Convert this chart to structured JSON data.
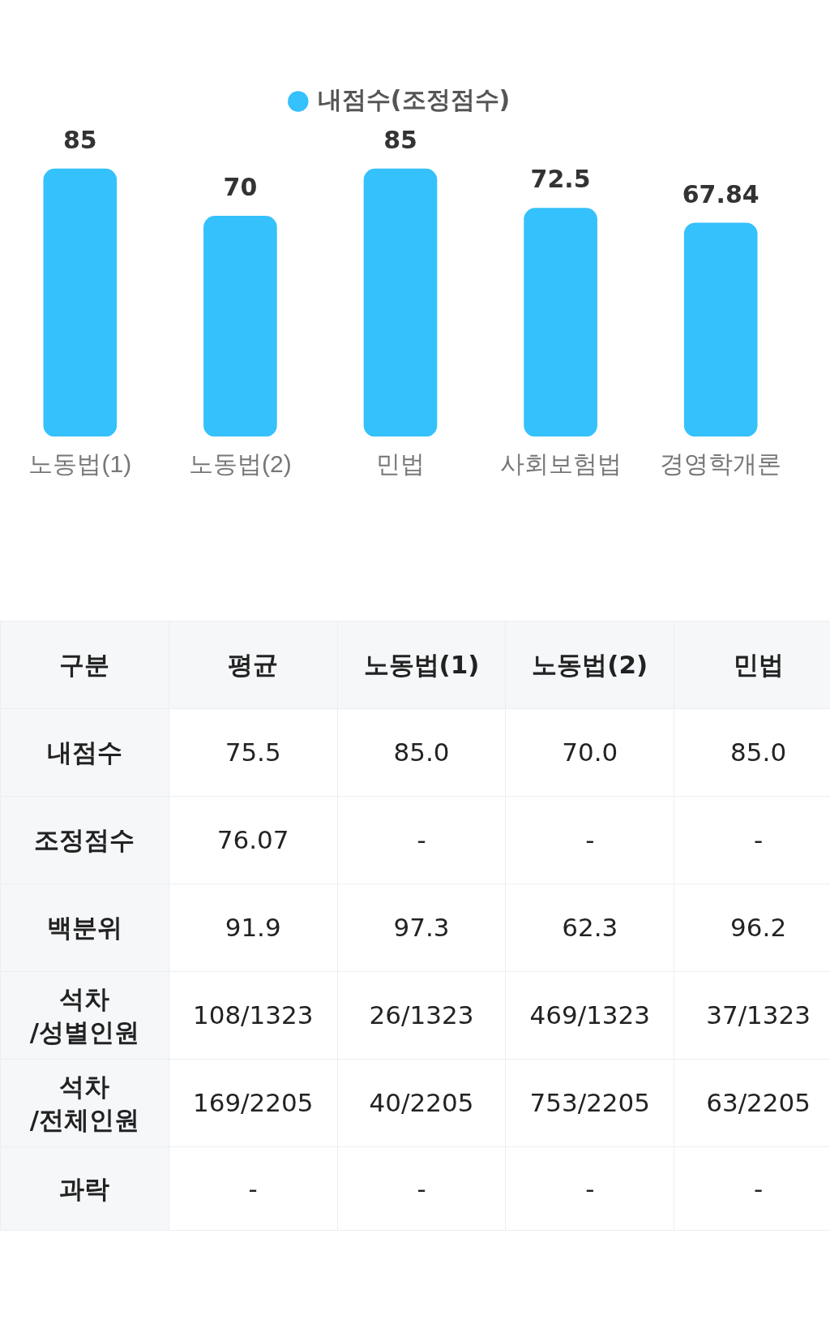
{
  "chart_data": [
    {
      "type": "bar",
      "categories": [
        "노동법(1)",
        "노동법(2)",
        "민법",
        "사회보험법",
        "경영학개론"
      ],
      "series": [
        {
          "name": "내점수(조정점수)",
          "color": "#35c1fb",
          "values": [
            85,
            70,
            85,
            72.5,
            67.84
          ]
        }
      ],
      "data_labels": true,
      "legend": "top",
      "grid": false,
      "tick_labels": "x"
    },
    {
      "type": "other",
      "categories": [
        "구분",
        "평균",
        "노동법(1)",
        "노동법(2)",
        "민법"
      ],
      "y_categories": [
        "내점수",
        "조정점수",
        "백분위",
        "석차\n/성별인원",
        "석차\n/전체인원",
        "과락"
      ],
      "cell_labels": [
        [
          "75.5",
          "85.0",
          "70.0",
          "85.0"
        ],
        [
          "76.07",
          "-",
          "-",
          "-"
        ],
        [
          "91.9",
          "97.3",
          "62.3",
          "96.2"
        ],
        [
          "108/1323",
          "26/1323",
          "469/1323",
          "37/1323"
        ],
        [
          "169/2205",
          "40/2205",
          "753/2205",
          "63/2205"
        ],
        [
          "-",
          "-",
          "-",
          "-"
        ]
      ]
    }
  ]
}
